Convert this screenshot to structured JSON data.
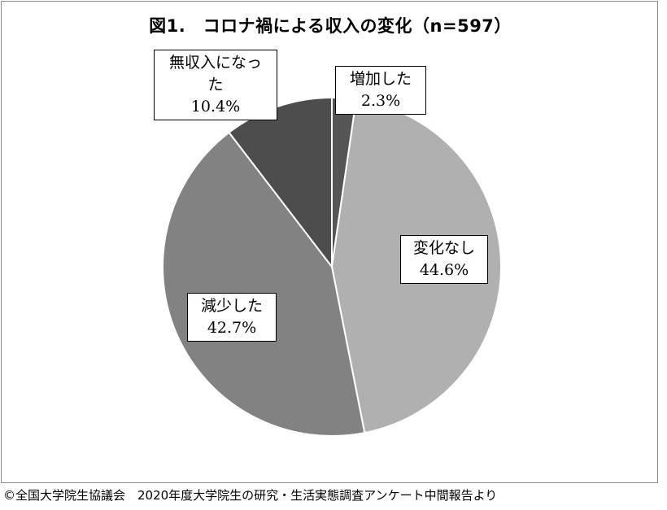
{
  "chart_data": {
    "type": "pie",
    "title": "図1.　コロナ禍による収入の変化（n=597）",
    "slices": [
      {
        "label": "増加した",
        "value": 2.3,
        "value_label": "2.3%",
        "color": "#555555"
      },
      {
        "label": "変化なし",
        "value": 44.6,
        "value_label": "44.6%",
        "color": "#b0b0b0"
      },
      {
        "label": "減少した",
        "value": 42.7,
        "value_label": "42.7%",
        "color": "#828282"
      },
      {
        "label": "無収入になった",
        "value": 10.4,
        "value_label": "10.4%",
        "color": "#4d4d4d"
      }
    ],
    "start": "12 o'clock",
    "direction": "clockwise"
  },
  "labels": {
    "increase": {
      "line1": "増加した",
      "value": "2.3%"
    },
    "nochange": {
      "line1": "変化なし",
      "value": "44.6%"
    },
    "decrease": {
      "line1": "減少した",
      "value": "42.7%"
    },
    "noincome": {
      "line1": "無収入になっ",
      "line2": "た",
      "value": "10.4%"
    }
  },
  "source": "©全国大学院生協議会　2020年度大学院生の研究・生活実態調査アンケート中間報告より"
}
